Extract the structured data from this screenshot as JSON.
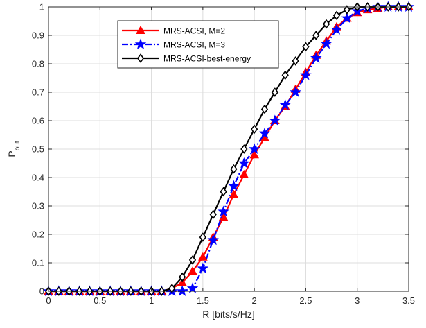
{
  "chart_data": {
    "type": "line",
    "xlabel": "R [bits/s/Hz]",
    "ylabel": {
      "main": "P",
      "sub": "out"
    },
    "xlim": [
      0,
      3.5
    ],
    "ylim": [
      0,
      1
    ],
    "xticks": [
      0,
      0.5,
      1,
      1.5,
      2,
      2.5,
      3,
      3.5
    ],
    "xtick_labels": [
      "0",
      "0.5",
      "1",
      "1.5",
      "2",
      "2.5",
      "3",
      "3.5"
    ],
    "yticks": [
      0,
      0.1,
      0.2,
      0.3,
      0.4,
      0.5,
      0.6,
      0.7,
      0.8,
      0.9,
      1
    ],
    "ytick_labels": [
      "0",
      "0.1",
      "0.2",
      "0.3",
      "0.4",
      "0.5",
      "0.6",
      "0.7",
      "0.8",
      "0.9",
      "1"
    ],
    "grid": true,
    "legend_position": "top-left",
    "x": [
      0,
      0.1,
      0.2,
      0.3,
      0.4,
      0.5,
      0.6,
      0.7,
      0.8,
      0.9,
      1.0,
      1.1,
      1.2,
      1.3,
      1.4,
      1.5,
      1.6,
      1.7,
      1.8,
      1.9,
      2.0,
      2.1,
      2.2,
      2.3,
      2.4,
      2.5,
      2.6,
      2.7,
      2.8,
      2.9,
      3.0,
      3.1,
      3.2,
      3.3,
      3.4,
      3.5
    ],
    "series": [
      {
        "name": "MRS-ACSI, M=2",
        "color": "#ff0000",
        "dash": "solid",
        "marker": "triangle",
        "values": [
          0,
          0,
          0,
          0,
          0,
          0,
          0,
          0,
          0,
          0,
          0,
          0,
          0.01,
          0.03,
          0.07,
          0.12,
          0.19,
          0.26,
          0.34,
          0.41,
          0.48,
          0.54,
          0.6,
          0.65,
          0.71,
          0.77,
          0.83,
          0.88,
          0.93,
          0.96,
          0.98,
          0.99,
          0.995,
          1,
          1,
          1
        ]
      },
      {
        "name": "MRS-ACSI, M=3",
        "color": "#0000ff",
        "dash": "dashdot",
        "marker": "star",
        "values": [
          0,
          0,
          0,
          0,
          0,
          0,
          0,
          0,
          0,
          0,
          0,
          0,
          0,
          0,
          0.01,
          0.08,
          0.18,
          0.28,
          0.37,
          0.45,
          0.5,
          0.555,
          0.6,
          0.655,
          0.7,
          0.76,
          0.82,
          0.87,
          0.92,
          0.96,
          0.985,
          0.995,
          1,
          1,
          1,
          1
        ]
      },
      {
        "name": "MRS-ACSI-best-energy",
        "color": "#000000",
        "dash": "solid",
        "marker": "diamond",
        "values": [
          0,
          0,
          0,
          0,
          0,
          0,
          0,
          0,
          0,
          0,
          0,
          0,
          0.01,
          0.05,
          0.11,
          0.19,
          0.27,
          0.35,
          0.43,
          0.5,
          0.57,
          0.64,
          0.7,
          0.76,
          0.81,
          0.86,
          0.9,
          0.94,
          0.97,
          0.99,
          1,
          1,
          1,
          1,
          1,
          1
        ]
      }
    ]
  }
}
